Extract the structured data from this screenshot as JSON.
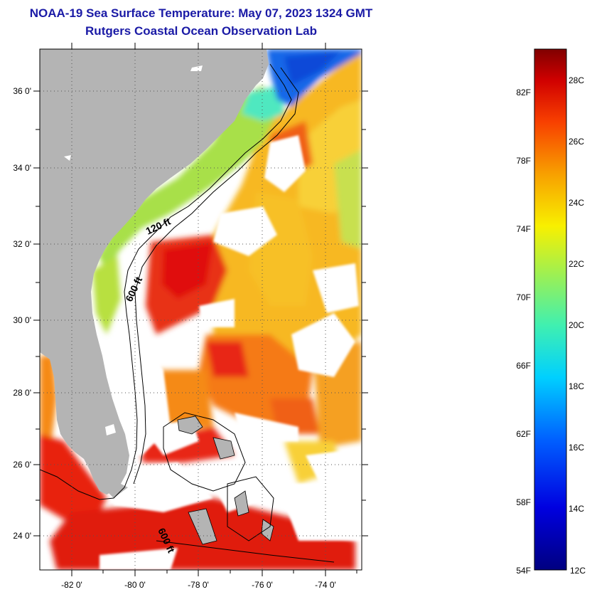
{
  "header": {
    "title": "NOAA-19 Sea Surface Temperature:  May 07, 2023 1324 GMT",
    "subtitle": "Rutgers Coastal Ocean Observation Lab"
  },
  "map": {
    "lat_labels": [
      "36 0'",
      "34 0'",
      "32 0'",
      "30 0'",
      "28 0'",
      "26 0'",
      "24 0'"
    ],
    "lon_labels": [
      "-82 0'",
      "-80 0'",
      "-78 0'",
      "-76 0'",
      "-74 0'"
    ],
    "contours": [
      {
        "label": "120 ft"
      },
      {
        "label": "600 ft"
      },
      {
        "label": "600 ft"
      }
    ],
    "colors": {
      "land": "#b4b4b4",
      "cloud": "#ffffff",
      "warm": "#e8201a",
      "orange": "#f58a18",
      "yellow": "#f7c820",
      "green": "#9ee050",
      "cyan": "#40e8e0",
      "blue": "#1050e8"
    }
  },
  "colorbar": {
    "f_labels": [
      "82F",
      "78F",
      "74F",
      "70F",
      "66F",
      "62F",
      "58F",
      "54F"
    ],
    "c_labels": [
      "28C",
      "26C",
      "24C",
      "22C",
      "20C",
      "18C",
      "16C",
      "14C",
      "12C"
    ]
  }
}
